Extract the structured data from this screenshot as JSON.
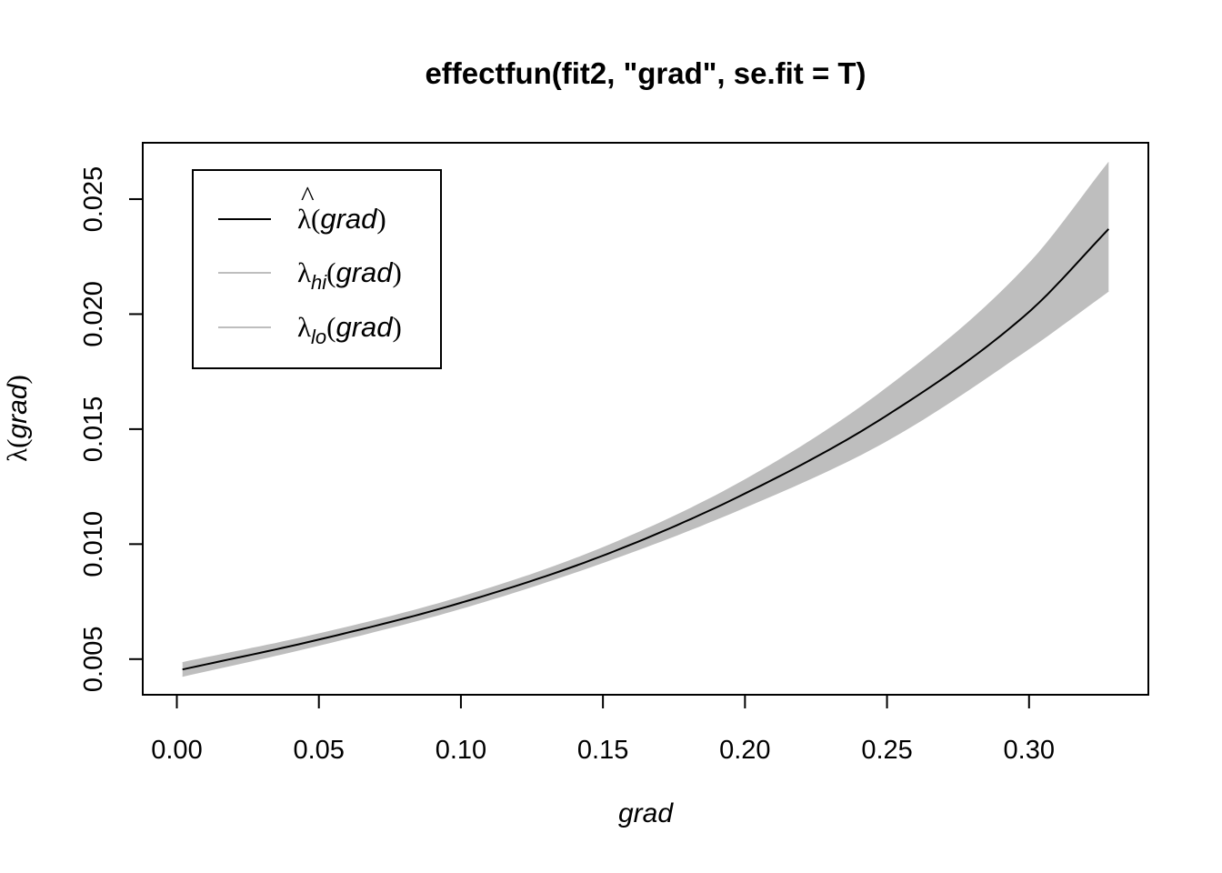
{
  "chart_data": {
    "type": "line",
    "title": "effectfun(fit2, \"grad\", se.fit = T)",
    "xlabel": "grad",
    "ylabel": "λ(grad)",
    "xlim": [
      -0.012,
      0.342
    ],
    "ylim": [
      0.00345,
      0.02745
    ],
    "x_ticks": [
      0.0,
      0.05,
      0.1,
      0.15,
      0.2,
      0.25,
      0.3
    ],
    "x_tick_labels": [
      "0.00",
      "0.05",
      "0.10",
      "0.15",
      "0.20",
      "0.25",
      "0.30"
    ],
    "y_ticks": [
      0.005,
      0.01,
      0.015,
      0.02,
      0.025
    ],
    "y_tick_labels": [
      "0.005",
      "0.010",
      "0.015",
      "0.020",
      "0.025"
    ],
    "grid": false,
    "legend_position": "top-left",
    "band_color": "#bebebe",
    "line_color": "#000000",
    "series": [
      {
        "name": "λ̂(grad)",
        "role": "estimate",
        "x": [
          0.002,
          0.05,
          0.1,
          0.15,
          0.2,
          0.25,
          0.3,
          0.328
        ],
        "y": [
          0.00455,
          0.00585,
          0.00745,
          0.0095,
          0.0122,
          0.0156,
          0.0201,
          0.0237
        ]
      },
      {
        "name": "λhi(grad)",
        "role": "upper",
        "x": [
          0.002,
          0.05,
          0.1,
          0.15,
          0.2,
          0.25,
          0.3,
          0.328
        ],
        "y": [
          0.00485,
          0.0061,
          0.0077,
          0.00985,
          0.0128,
          0.0168,
          0.0222,
          0.0266
        ]
      },
      {
        "name": "λlo(grad)",
        "role": "lower",
        "x": [
          0.002,
          0.05,
          0.1,
          0.15,
          0.2,
          0.25,
          0.3,
          0.328
        ],
        "y": [
          0.00425,
          0.0056,
          0.0072,
          0.0092,
          0.0116,
          0.0145,
          0.0185,
          0.021
        ]
      }
    ],
    "legend": [
      {
        "base": "λ",
        "hat": "^",
        "sub": "",
        "arg": "grad"
      },
      {
        "base": "λ",
        "hat": "",
        "sub": "hi",
        "arg": "grad"
      },
      {
        "base": "λ",
        "hat": "",
        "sub": "lo",
        "arg": "grad"
      }
    ]
  }
}
